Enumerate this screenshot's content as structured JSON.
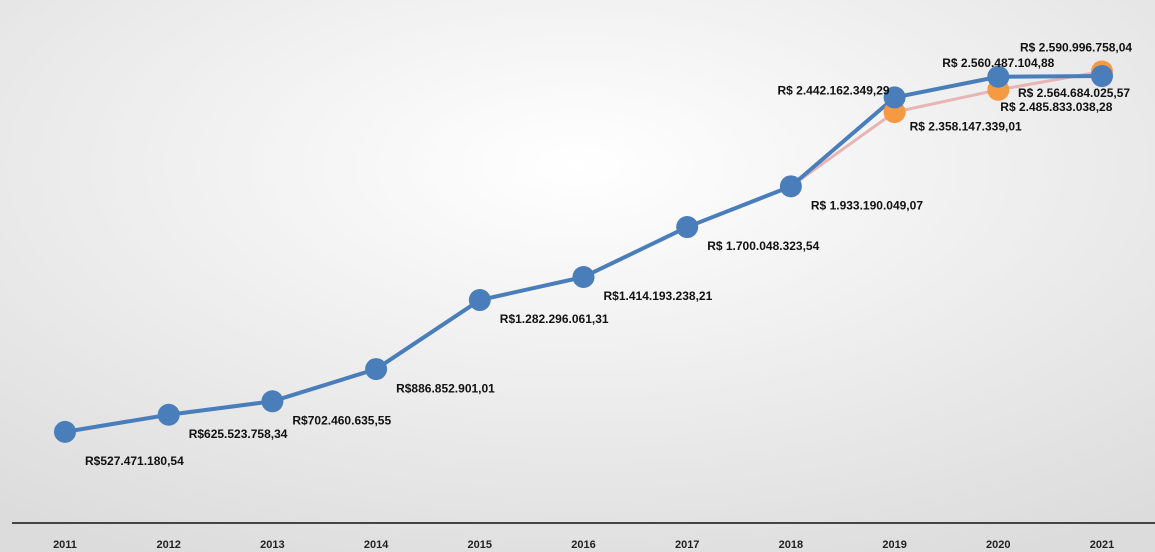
{
  "chart_data": {
    "type": "line",
    "x": [
      "2011",
      "2012",
      "2013",
      "2014",
      "2015",
      "2016",
      "2017",
      "2018",
      "2019",
      "2020",
      "2021"
    ],
    "series": [
      {
        "color": "#4a7ebb",
        "values": [
          527471180.54,
          625523758.34,
          702460635.55,
          886852901.01,
          1282296061.31,
          1414193238.21,
          1700048323.54,
          1933190049.07,
          2442162349.29,
          2560487104.88,
          2564684025.57
        ],
        "value_labels": [
          "R$527.471.180,54",
          "R$625.523.758,34",
          "R$702.460.635,55",
          "R$886.852.901,01",
          "R$1.282.296.061,31",
          "R$1.414.193.238,21",
          "R$ 1.700.048.323,54",
          "R$ 1.933.190.049,07",
          "R$ 2.442.162.349,29",
          "R$ 2.560.487.104,88",
          "R$ 2.564.684.025,57"
        ]
      },
      {
        "color": "#f59a43",
        "line_color": "#e8b4b4",
        "values": [
          null,
          null,
          null,
          null,
          null,
          null,
          null,
          1933190049.07,
          2358147339.01,
          2485833038.28,
          2590996758.04
        ],
        "value_labels": [
          null,
          null,
          null,
          null,
          null,
          null,
          null,
          null,
          "R$ 2.358.147.339,01",
          "R$ 2.485.833.038,28",
          "R$ 2.590.996.758,04"
        ]
      }
    ],
    "ylim": [
      0,
      3000000000
    ]
  }
}
